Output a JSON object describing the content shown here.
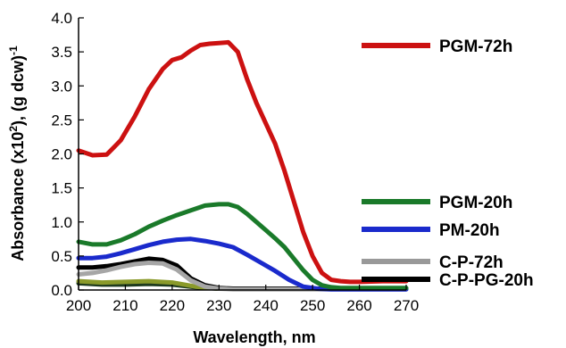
{
  "chart_data": {
    "type": "line",
    "title": "",
    "xlabel": "Wavelength, nm",
    "ylabel_main": "Absorbance (x10",
    "ylabel_sup1": "2",
    "ylabel_mid": "), (g dcw)",
    "ylabel_sup2": "-1",
    "xlim": [
      200,
      270
    ],
    "ylim": [
      0,
      4.0
    ],
    "xticks": [
      200,
      210,
      220,
      230,
      240,
      250,
      260,
      270
    ],
    "xtick_labels": [
      "200",
      "210",
      "220",
      "230",
      "240",
      "250",
      "260",
      "270"
    ],
    "yticks": [
      0,
      0.5,
      1.0,
      1.5,
      2.0,
      2.5,
      3.0,
      3.5,
      4.0
    ],
    "ytick_labels": [
      "0.0",
      "0.5",
      "1.0",
      "1.5",
      "2.0",
      "2.5",
      "3.0",
      "3.5",
      "4.0"
    ],
    "grid": false,
    "legend_position": "right",
    "series": [
      {
        "name": "PGM-72h",
        "color": "#cc1111",
        "x": [
          200,
          203,
          206,
          209,
          212,
          215,
          218,
          220,
          222,
          224,
          226,
          228,
          230,
          232,
          234,
          236,
          238,
          240,
          242,
          244,
          246,
          248,
          250,
          252,
          254,
          256,
          258,
          260,
          265,
          270
        ],
        "y": [
          2.05,
          1.98,
          1.99,
          2.2,
          2.55,
          2.95,
          3.25,
          3.38,
          3.42,
          3.52,
          3.6,
          3.62,
          3.63,
          3.64,
          3.5,
          3.1,
          2.75,
          2.45,
          2.15,
          1.75,
          1.3,
          0.85,
          0.5,
          0.25,
          0.15,
          0.13,
          0.12,
          0.12,
          0.13,
          0.13
        ]
      },
      {
        "name": "PGM-20h",
        "color": "#1a7a2a",
        "x": [
          200,
          203,
          206,
          209,
          212,
          215,
          218,
          221,
          224,
          227,
          230,
          232,
          234,
          236,
          238,
          240,
          242,
          244,
          246,
          248,
          250,
          252,
          254,
          256,
          258,
          260,
          265,
          270
        ],
        "y": [
          0.71,
          0.67,
          0.67,
          0.73,
          0.82,
          0.93,
          1.02,
          1.1,
          1.17,
          1.24,
          1.26,
          1.26,
          1.22,
          1.12,
          1.0,
          0.88,
          0.76,
          0.63,
          0.46,
          0.29,
          0.15,
          0.07,
          0.04,
          0.03,
          0.03,
          0.03,
          0.03,
          0.03
        ]
      },
      {
        "name": "PM-20h",
        "color": "#1a2acc",
        "x": [
          200,
          203,
          206,
          209,
          212,
          215,
          218,
          221,
          224,
          227,
          230,
          233,
          236,
          239,
          242,
          245,
          248,
          251,
          254,
          257,
          260,
          265,
          270
        ],
        "y": [
          0.47,
          0.47,
          0.49,
          0.54,
          0.6,
          0.66,
          0.71,
          0.74,
          0.75,
          0.72,
          0.68,
          0.63,
          0.52,
          0.4,
          0.28,
          0.15,
          0.05,
          0.02,
          0.01,
          0.01,
          0.01,
          0.01,
          0.01
        ]
      },
      {
        "name": "C-P-72h",
        "color": "#a6a6a6",
        "x": [
          200,
          203,
          206,
          209,
          212,
          215,
          218,
          221,
          224,
          227,
          230,
          233,
          236,
          240,
          245,
          250,
          260,
          270
        ],
        "y": [
          0.23,
          0.25,
          0.29,
          0.34,
          0.38,
          0.4,
          0.39,
          0.3,
          0.14,
          0.05,
          0.02,
          0.01,
          0.01,
          0.01,
          0.01,
          0.01,
          0.01,
          0.01
        ]
      },
      {
        "name": "C-P-PG-20h",
        "color": "#000000",
        "x": [
          200,
          203,
          206,
          209,
          212,
          215,
          218,
          221,
          224,
          227,
          230,
          233,
          236,
          240,
          245,
          250,
          260,
          270
        ],
        "y": [
          0.33,
          0.33,
          0.35,
          0.38,
          0.42,
          0.46,
          0.44,
          0.36,
          0.17,
          0.07,
          0.03,
          0.02,
          0.02,
          0.02,
          0.02,
          0.02,
          0.02,
          0.02
        ]
      },
      {
        "name": "",
        "color": "#8a9a2a",
        "x": [
          200,
          205,
          210,
          215,
          220,
          225,
          230,
          240,
          250,
          260,
          270
        ],
        "y": [
          0.13,
          0.11,
          0.12,
          0.13,
          0.11,
          0.05,
          0.02,
          0.02,
          0.02,
          0.02,
          0.02
        ]
      },
      {
        "name": "",
        "color": "#1e3a1e",
        "x": [
          200,
          205,
          210,
          215,
          220,
          225,
          230,
          240,
          250,
          260,
          270
        ],
        "y": [
          0.1,
          0.08,
          0.08,
          0.09,
          0.08,
          0.04,
          0.02,
          0.02,
          0.02,
          0.02,
          0.02
        ]
      }
    ],
    "legend": [
      {
        "label": "PGM-72h",
        "color": "#cc1111"
      },
      {
        "label": "PGM-20h",
        "color": "#1a7a2a"
      },
      {
        "label": "PM-20h",
        "color": "#1a2acc"
      },
      {
        "label": "C-P-72h",
        "color": "#999999"
      },
      {
        "label": "C-P-PG-20h",
        "color": "#000000"
      }
    ]
  }
}
